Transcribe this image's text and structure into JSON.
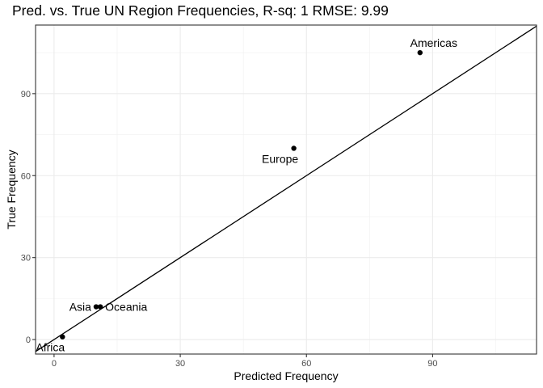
{
  "chart_data": {
    "type": "scatter",
    "title": "Pred. vs. True UN Region Frequencies, R-sq: 1 RMSE: 9.99",
    "xlabel": "Predicted Frequency",
    "ylabel": "True Frequency",
    "xlim": [
      -4.4,
      114.7
    ],
    "ylim": [
      -5.3,
      115.1
    ],
    "x_ticks": [
      0,
      30,
      60,
      90
    ],
    "y_ticks": [
      0,
      30,
      60,
      90
    ],
    "grid": true,
    "reference_line": {
      "slope": 1,
      "intercept": 0
    },
    "points": [
      {
        "label": "Americas",
        "x": 87,
        "y": 105
      },
      {
        "label": "Europe",
        "x": 57,
        "y": 70
      },
      {
        "label": "Asia",
        "x": 10,
        "y": 12
      },
      {
        "label": "Oceania",
        "x": 11,
        "y": 12
      },
      {
        "label": "Africa",
        "x": 2,
        "y": 1
      }
    ]
  }
}
